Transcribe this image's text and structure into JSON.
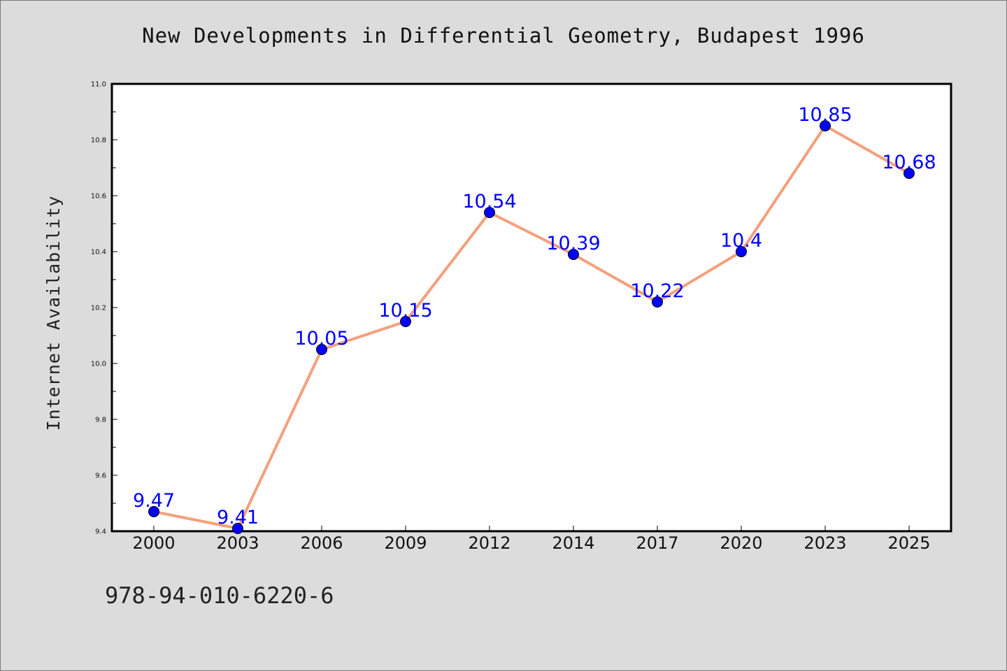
{
  "title": "New Developments in Differential Geometry, Budapest 1996",
  "footer_text": "978-94-010-6220-6",
  "colors": {
    "background": "#dcdcdc",
    "plot_background": "#ffffff",
    "line": "#f4a07c",
    "marker": "#0000ff",
    "data_label": "#0000ff"
  },
  "chart_data": {
    "type": "line",
    "title": "New Developments in Differential Geometry, Budapest 1996",
    "xlabel": "",
    "ylabel": "Internet Availability",
    "categories": [
      "2000",
      "2003",
      "2006",
      "2009",
      "2012",
      "2014",
      "2017",
      "2020",
      "2023",
      "2025"
    ],
    "series": [
      {
        "values": [
          9.47,
          9.41,
          10.05,
          10.15,
          10.54,
          10.39,
          10.22,
          10.4,
          10.85,
          10.68
        ],
        "labels": [
          "9.47",
          "9.41",
          "10.05",
          "10.15",
          "10.54",
          "10.39",
          "10.22",
          "10.4",
          "10.85",
          "10.68"
        ]
      }
    ],
    "ylim": [
      9.4,
      11.0
    ],
    "yticks": [
      "9.4",
      "9.6",
      "9.8",
      "10.0",
      "10.2",
      "10.4",
      "10.6",
      "10.8",
      "11.0"
    ],
    "grid": false,
    "legend": "none"
  }
}
